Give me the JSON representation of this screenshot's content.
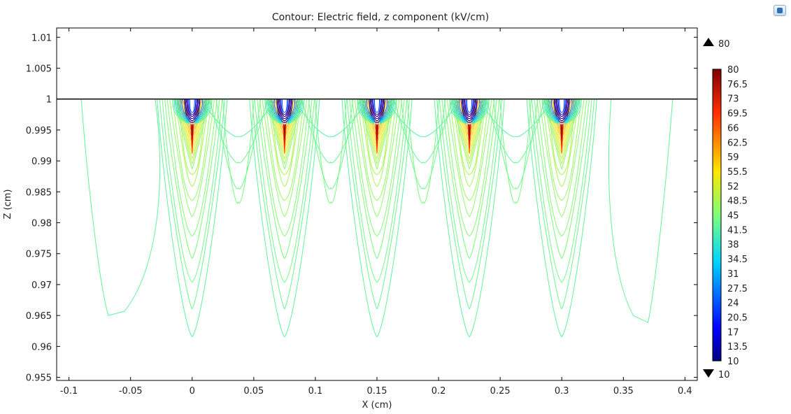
{
  "chart_data": {
    "type": "contour",
    "title": "Contour: Electric field, z component (kV/cm)",
    "xlabel": "X (cm)",
    "ylabel": "Z (cm)",
    "xlim": [
      -0.11,
      0.41
    ],
    "ylim": [
      0.9545,
      1.0115
    ],
    "x_ticks": [
      -0.1,
      -0.05,
      0,
      0.05,
      0.1,
      0.15,
      0.2,
      0.25,
      0.3,
      0.35,
      0.4
    ],
    "x_tick_labels": [
      "-0.1",
      "-0.05",
      "0",
      "0.05",
      "0.1",
      "0.15",
      "0.2",
      "0.25",
      "0.3",
      "0.35",
      "0.4"
    ],
    "y_ticks": [
      0.955,
      0.96,
      0.965,
      0.97,
      0.975,
      0.98,
      0.985,
      0.99,
      0.995,
      1.0,
      1.005,
      1.01
    ],
    "y_tick_labels": [
      "0.955",
      "0.96",
      "0.965",
      "0.97",
      "0.975",
      "0.98",
      "0.985",
      "0.99",
      "0.995",
      "1",
      "1.005",
      "1.01"
    ],
    "surface_z": 1.0,
    "electrode_x": [
      0,
      0.075,
      0.15,
      0.225,
      0.3
    ],
    "colorbar": {
      "min": 10,
      "max": 80,
      "tick_labels": [
        "80",
        "76.5",
        "73",
        "69.5",
        "66",
        "62.5",
        "59",
        "55.5",
        "52",
        "48.5",
        "45",
        "41.5",
        "38",
        "34.5",
        "31",
        "27.5",
        "24",
        "20.5",
        "17",
        "13.5",
        "10"
      ],
      "max_marker": "80",
      "min_marker": "10",
      "colormap": "rainbow"
    },
    "colors": {
      "axis": "#000000",
      "background": "#ffffff",
      "field_line": "#44dd55"
    }
  }
}
